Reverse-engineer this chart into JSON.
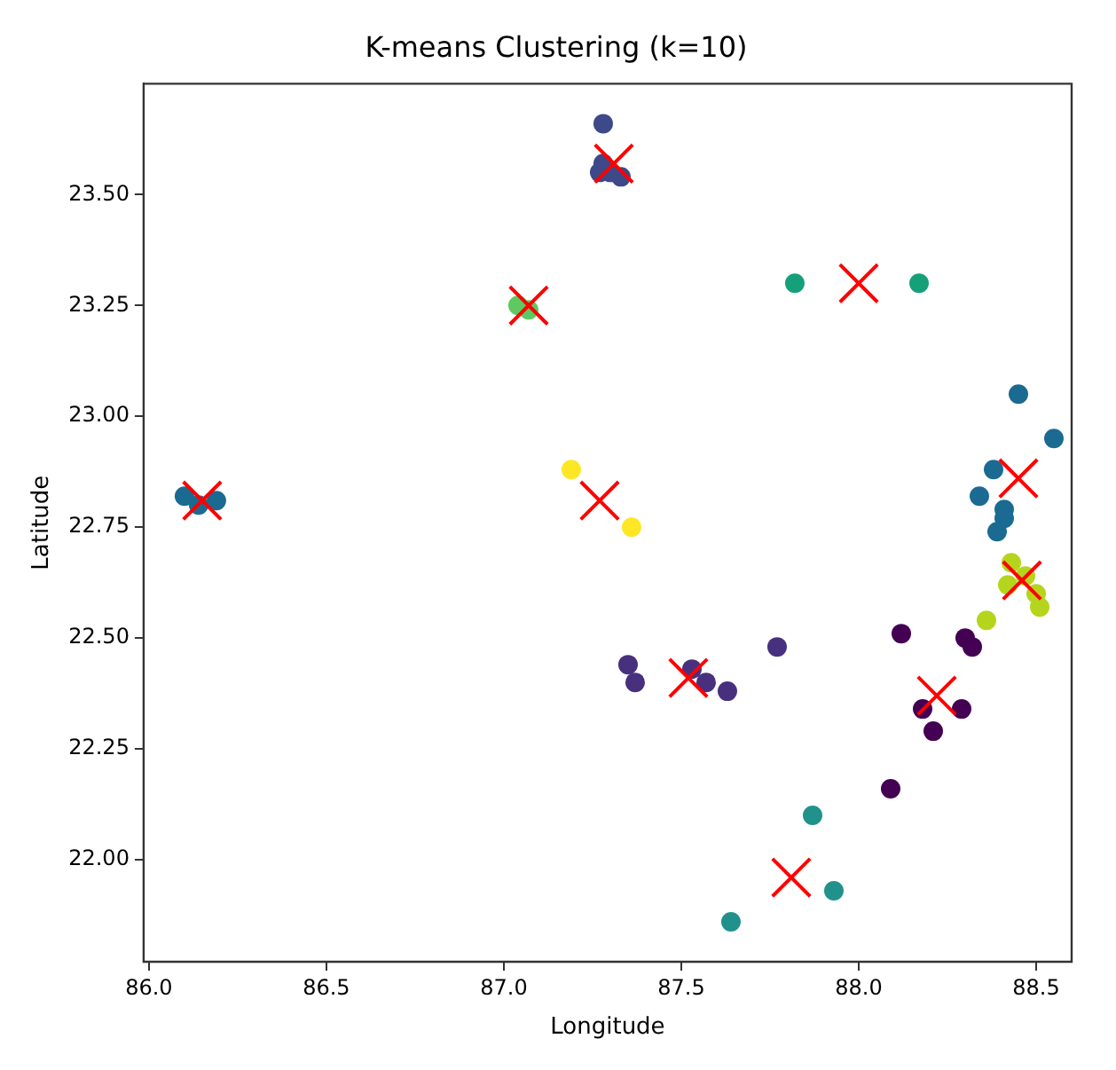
{
  "chart_data": {
    "type": "scatter",
    "title": "K-means Clustering (k=10)",
    "xlabel": "Longitude",
    "ylabel": "Latitude",
    "xlim": [
      85.985,
      88.6
    ],
    "ylim": [
      21.77,
      23.75
    ],
    "xticks": [
      {
        "value": 86,
        "label": "86.0"
      },
      {
        "value": 86.5,
        "label": "86.5"
      },
      {
        "value": 87,
        "label": "87.0"
      },
      {
        "value": 87.5,
        "label": "87.5"
      },
      {
        "value": 88,
        "label": "88.0"
      },
      {
        "value": 88.5,
        "label": "88.5"
      }
    ],
    "yticks": [
      {
        "value": 22,
        "label": "22.00"
      },
      {
        "value": 22.25,
        "label": "22.25"
      },
      {
        "value": 22.5,
        "label": "22.50"
      },
      {
        "value": 22.75,
        "label": "22.75"
      },
      {
        "value": 23,
        "label": "23.00"
      },
      {
        "value": 23.25,
        "label": "23.25"
      },
      {
        "value": 23.5,
        "label": "23.50"
      }
    ],
    "grid": false,
    "legend": false,
    "marker": "circle",
    "series": [
      {
        "color": "#3e4989",
        "x": [
          87.28,
          87.28,
          87.27,
          87.3,
          87.33
        ],
        "values": [
          23.66,
          23.57,
          23.55,
          23.55,
          23.54
        ]
      },
      {
        "color": "#5ec962",
        "x": [
          87.04,
          87.07
        ],
        "values": [
          23.25,
          23.24
        ]
      },
      {
        "color": "#15a07a",
        "x": [
          87.82,
          88.17
        ],
        "values": [
          23.3,
          23.3
        ]
      },
      {
        "color": "#1b6a92",
        "x": [
          86.1,
          86.14,
          86.19
        ],
        "values": [
          22.82,
          22.8,
          22.81
        ]
      },
      {
        "color": "#fde725",
        "x": [
          87.19,
          87.36
        ],
        "values": [
          22.88,
          22.75
        ]
      },
      {
        "color": "#1b6a92",
        "x": [
          88.45,
          88.55,
          88.38,
          88.34,
          88.41,
          88.41,
          88.39
        ],
        "values": [
          23.05,
          22.95,
          22.88,
          22.82,
          22.79,
          22.77,
          22.74
        ]
      },
      {
        "color": "#b5d51c",
        "x": [
          88.43,
          88.47,
          88.42,
          88.5,
          88.51,
          88.36
        ],
        "values": [
          22.67,
          22.64,
          22.62,
          22.6,
          22.57,
          22.54
        ]
      },
      {
        "color": "#48307f",
        "x": [
          87.35,
          87.37,
          87.53,
          87.57,
          87.63,
          87.77
        ],
        "values": [
          22.44,
          22.4,
          22.43,
          22.4,
          22.38,
          22.48
        ]
      },
      {
        "color": "#440154",
        "x": [
          88.12,
          88.3,
          88.32,
          88.18,
          88.29,
          88.21,
          88.09
        ],
        "values": [
          22.51,
          22.5,
          22.48,
          22.34,
          22.34,
          22.29,
          22.16
        ]
      },
      {
        "color": "#21918c",
        "x": [
          87.87,
          87.93,
          87.64
        ],
        "values": [
          22.1,
          21.93,
          21.86
        ]
      },
      {
        "color": "#ff0000",
        "marker": "cross",
        "x": [
          87.31,
          87.07,
          88.0,
          86.15,
          87.27,
          88.45,
          88.46,
          87.52,
          88.22,
          87.81
        ],
        "values": [
          23.57,
          23.25,
          23.3,
          22.81,
          22.81,
          22.86,
          22.63,
          22.41,
          22.37,
          21.96
        ]
      }
    ]
  }
}
